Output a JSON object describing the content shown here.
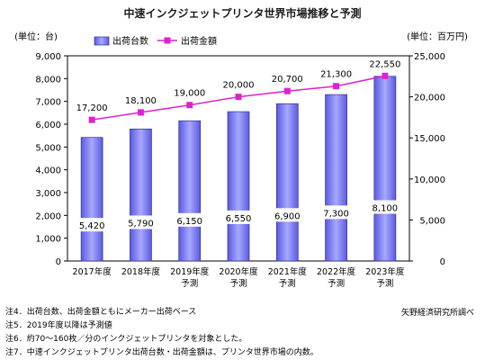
{
  "title": "中速インクジェットプリンタ世界市場推移と予測",
  "chart_data": {
    "type": "bar",
    "left_axis_unit": "(単位：台)",
    "right_axis_unit": "(単位：百万円)",
    "categories": [
      [
        "2017年度"
      ],
      [
        "2018年度"
      ],
      [
        "2019年度",
        "予測"
      ],
      [
        "2020年度",
        "予測"
      ],
      [
        "2021年度",
        "予測"
      ],
      [
        "2022年度",
        "予測"
      ],
      [
        "2023年度",
        "予測"
      ]
    ],
    "series": [
      {
        "name": "出荷台数",
        "type": "bar",
        "axis": "left",
        "values": [
          5420,
          5790,
          6150,
          6550,
          6900,
          7300,
          8100
        ],
        "labels": [
          "5,420",
          "5,790",
          "6,150",
          "6,550",
          "6,900",
          "7,300",
          "8,100"
        ],
        "color": "#8080f0"
      },
      {
        "name": "出荷金額",
        "type": "line",
        "axis": "right",
        "values": [
          17200,
          18100,
          19000,
          20000,
          20700,
          21300,
          22550
        ],
        "labels": [
          "17,200",
          "18,100",
          "19,000",
          "20,000",
          "20,700",
          "21,300",
          "22,550"
        ],
        "color": "#e020d0"
      }
    ],
    "left_axis": {
      "min": 0,
      "max": 9000,
      "ticks": [
        "0",
        "1,000",
        "2,000",
        "3,000",
        "4,000",
        "5,000",
        "6,000",
        "7,000",
        "8,000",
        "9,000"
      ]
    },
    "right_axis": {
      "min": 0,
      "max": 25000,
      "ticks": [
        "0",
        "5,000",
        "10,000",
        "15,000",
        "20,000",
        "25,000"
      ]
    },
    "grid": false,
    "legend": "top-left"
  },
  "notes": [
    "注4．出荷台数、出荷金額ともにメーカー出荷ベース",
    "注5．2019年度以降は予測値",
    "注6．約70～160枚／分のインクジェットプリンタを対象とした。",
    "注7．中速インクジェットプリンタ出荷台数・出荷金額は、プリンタ世界市場の内数。"
  ],
  "source": "矢野経済研究所調べ"
}
